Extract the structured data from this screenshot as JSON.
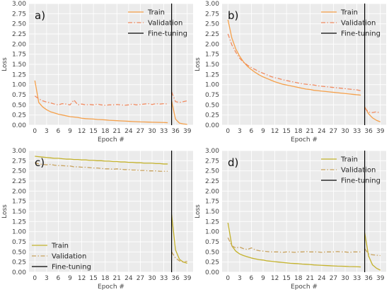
{
  "colors": {
    "panel_background": "#ebebeb",
    "grid": "#ffffff",
    "fine_tuning_line": "#000000",
    "train_orange": "#f5a04a",
    "validation_orange": "#f08a60",
    "train_olive": "#c4b22c",
    "validation_olive": "#c8a25e"
  },
  "chart_data": [
    {
      "type": "line",
      "panel_label": "a)",
      "xlabel": "Epoch #",
      "ylabel": "Loss",
      "xlim": [
        -1.5,
        40.5
      ],
      "ylim": [
        0,
        3
      ],
      "x_ticks": [
        "0",
        "3",
        "6",
        "9",
        "12",
        "15",
        "18",
        "21",
        "24",
        "27",
        "30",
        "33",
        "36",
        "39"
      ],
      "y_ticks": [
        "0.00",
        "0.25",
        "0.50",
        "0.75",
        "1.00",
        "1.25",
        "1.50",
        "1.75",
        "2.00",
        "2.25",
        "2.50",
        "2.75",
        "3.00"
      ],
      "grid": true,
      "legend": {
        "position": "top-right",
        "entries": [
          "Train",
          "Validation",
          "Fine-tuning"
        ]
      },
      "vline": {
        "x": 35,
        "label": "Fine-tuning"
      },
      "series": [
        {
          "name": "Train",
          "style": "solid",
          "color_key": "train_orange",
          "x": [
            0,
            1,
            2,
            3,
            4,
            5,
            6,
            7,
            8,
            9,
            10,
            11,
            12,
            13,
            14,
            15,
            16,
            17,
            18,
            19,
            20,
            21,
            22,
            23,
            24,
            25,
            26,
            27,
            28,
            29,
            30,
            31,
            32,
            33,
            34
          ],
          "y": [
            1.1,
            0.56,
            0.45,
            0.38,
            0.33,
            0.3,
            0.27,
            0.25,
            0.23,
            0.21,
            0.2,
            0.19,
            0.17,
            0.16,
            0.155,
            0.15,
            0.14,
            0.135,
            0.13,
            0.12,
            0.115,
            0.11,
            0.105,
            0.1,
            0.095,
            0.09,
            0.085,
            0.08,
            0.078,
            0.075,
            0.072,
            0.07,
            0.068,
            0.065,
            0.06
          ]
        },
        {
          "name": "Validation",
          "style": "dashdot",
          "color_key": "validation_orange",
          "x": [
            0,
            1,
            2,
            3,
            4,
            5,
            6,
            7,
            8,
            9,
            10,
            11,
            12,
            13,
            14,
            15,
            16,
            17,
            18,
            19,
            20,
            21,
            22,
            23,
            24,
            25,
            26,
            27,
            28,
            29,
            30,
            31,
            32,
            33,
            34
          ],
          "y": [
            0.72,
            0.65,
            0.6,
            0.57,
            0.55,
            0.52,
            0.5,
            0.53,
            0.52,
            0.5,
            0.62,
            0.5,
            0.52,
            0.5,
            0.51,
            0.5,
            0.52,
            0.5,
            0.49,
            0.5,
            0.5,
            0.51,
            0.5,
            0.49,
            0.5,
            0.52,
            0.5,
            0.51,
            0.52,
            0.53,
            0.51,
            0.53,
            0.52,
            0.53,
            0.52
          ]
        },
        {
          "name": "Train",
          "style": "solid",
          "color_key": "train_orange",
          "x": [
            35,
            36,
            37,
            38,
            39
          ],
          "y": [
            0.6,
            0.15,
            0.05,
            0.03,
            0.02
          ]
        },
        {
          "name": "Validation",
          "style": "dashdot",
          "color_key": "validation_orange",
          "x": [
            35,
            36,
            37,
            38,
            39
          ],
          "y": [
            0.82,
            0.58,
            0.56,
            0.58,
            0.6
          ]
        }
      ]
    },
    {
      "type": "line",
      "panel_label": "b)",
      "xlabel": "Epoch #",
      "ylabel": "Loss",
      "xlim": [
        -1.5,
        40.5
      ],
      "ylim": [
        0,
        3
      ],
      "x_ticks": [
        "0",
        "3",
        "6",
        "9",
        "12",
        "15",
        "18",
        "21",
        "24",
        "27",
        "30",
        "33",
        "36",
        "39"
      ],
      "y_ticks": [
        "0.00",
        "0.25",
        "0.50",
        "0.75",
        "1.00",
        "1.25",
        "1.50",
        "1.75",
        "2.00",
        "2.25",
        "2.50",
        "2.75",
        "3.00"
      ],
      "grid": true,
      "legend": {
        "position": "top-right",
        "entries": [
          "Train",
          "Validation",
          "Fine-tuning"
        ]
      },
      "vline": {
        "x": 35,
        "label": "Fine-tuning"
      },
      "series": [
        {
          "name": "Train",
          "style": "solid",
          "color_key": "train_orange",
          "x": [
            0,
            1,
            2,
            3,
            4,
            5,
            6,
            7,
            8,
            9,
            10,
            11,
            12,
            13,
            14,
            15,
            16,
            17,
            18,
            19,
            20,
            21,
            22,
            23,
            24,
            25,
            26,
            27,
            28,
            29,
            30,
            31,
            32,
            33,
            34
          ],
          "y": [
            2.6,
            2.15,
            1.88,
            1.7,
            1.56,
            1.45,
            1.37,
            1.3,
            1.24,
            1.19,
            1.15,
            1.11,
            1.07,
            1.04,
            1.01,
            0.99,
            0.97,
            0.95,
            0.93,
            0.91,
            0.89,
            0.88,
            0.86,
            0.85,
            0.84,
            0.83,
            0.82,
            0.81,
            0.8,
            0.79,
            0.78,
            0.77,
            0.76,
            0.75,
            0.74
          ]
        },
        {
          "name": "Validation",
          "style": "dashdot",
          "color_key": "validation_orange",
          "x": [
            0,
            1,
            2,
            3,
            4,
            5,
            6,
            7,
            8,
            9,
            10,
            11,
            12,
            13,
            14,
            15,
            16,
            17,
            18,
            19,
            20,
            21,
            22,
            23,
            24,
            25,
            26,
            27,
            28,
            29,
            30,
            31,
            32,
            33,
            34
          ],
          "y": [
            2.25,
            1.98,
            1.8,
            1.65,
            1.55,
            1.48,
            1.42,
            1.37,
            1.32,
            1.28,
            1.24,
            1.2,
            1.17,
            1.15,
            1.12,
            1.1,
            1.08,
            1.06,
            1.04,
            1.02,
            1.01,
            1.0,
            0.99,
            0.97,
            0.96,
            0.95,
            0.94,
            0.93,
            0.92,
            0.91,
            0.9,
            0.89,
            0.88,
            0.87,
            0.85
          ]
        },
        {
          "name": "Train",
          "style": "solid",
          "color_key": "train_orange",
          "x": [
            35,
            36,
            37,
            38,
            39
          ],
          "y": [
            0.45,
            0.28,
            0.18,
            0.12,
            0.08
          ]
        },
        {
          "name": "Validation",
          "style": "dashdot",
          "color_key": "validation_orange",
          "x": [
            35,
            36,
            37,
            38,
            39
          ],
          "y": [
            0.42,
            0.32,
            0.31,
            0.33,
            0.3
          ]
        }
      ]
    },
    {
      "type": "line",
      "panel_label": "c)",
      "xlabel": "Epoch #",
      "ylabel": "Loss",
      "xlim": [
        -1.5,
        40.5
      ],
      "ylim": [
        0,
        3
      ],
      "x_ticks": [
        "0",
        "3",
        "6",
        "9",
        "12",
        "15",
        "18",
        "21",
        "24",
        "27",
        "30",
        "33",
        "36",
        "39"
      ],
      "y_ticks": [
        "0.00",
        "0.25",
        "0.50",
        "0.75",
        "1.00",
        "1.25",
        "1.50",
        "1.75",
        "2.00",
        "2.25",
        "2.50",
        "2.75",
        "3.00"
      ],
      "grid": true,
      "legend": {
        "position": "bottom-left",
        "entries": [
          "Train",
          "Validation",
          "Fine-tuning"
        ]
      },
      "vline": {
        "x": 35,
        "label": "Fine-tuning"
      },
      "series": [
        {
          "name": "Train",
          "style": "solid",
          "color_key": "train_olive",
          "x": [
            0,
            1,
            2,
            3,
            4,
            5,
            6,
            7,
            8,
            9,
            10,
            11,
            12,
            13,
            14,
            15,
            16,
            17,
            18,
            19,
            20,
            21,
            22,
            23,
            24,
            25,
            26,
            27,
            28,
            29,
            30,
            31,
            32,
            33,
            34
          ],
          "y": [
            2.86,
            2.85,
            2.84,
            2.83,
            2.82,
            2.81,
            2.81,
            2.8,
            2.79,
            2.79,
            2.78,
            2.78,
            2.77,
            2.77,
            2.76,
            2.76,
            2.75,
            2.75,
            2.74,
            2.74,
            2.73,
            2.73,
            2.72,
            2.72,
            2.71,
            2.71,
            2.7,
            2.7,
            2.69,
            2.69,
            2.69,
            2.68,
            2.68,
            2.67,
            2.67
          ]
        },
        {
          "name": "Validation",
          "style": "dashdot",
          "color_key": "validation_olive",
          "x": [
            0,
            1,
            2,
            3,
            4,
            5,
            6,
            7,
            8,
            9,
            10,
            11,
            12,
            13,
            14,
            15,
            16,
            17,
            18,
            19,
            20,
            21,
            22,
            23,
            24,
            25,
            26,
            27,
            28,
            29,
            30,
            31,
            32,
            33,
            34
          ],
          "y": [
            2.7,
            2.67,
            2.66,
            2.65,
            2.66,
            2.64,
            2.63,
            2.63,
            2.62,
            2.62,
            2.6,
            2.6,
            2.59,
            2.59,
            2.58,
            2.57,
            2.57,
            2.56,
            2.55,
            2.55,
            2.54,
            2.55,
            2.54,
            2.53,
            2.53,
            2.52,
            2.52,
            2.51,
            2.51,
            2.5,
            2.5,
            2.5,
            2.49,
            2.49,
            2.49
          ]
        },
        {
          "name": "Train",
          "style": "solid",
          "color_key": "train_olive",
          "x": [
            35,
            36,
            37,
            38,
            39
          ],
          "y": [
            1.42,
            0.55,
            0.32,
            0.25,
            0.22
          ]
        },
        {
          "name": "Validation",
          "style": "dashdot",
          "color_key": "validation_olive",
          "x": [
            35,
            36,
            37,
            38,
            39
          ],
          "y": [
            0.5,
            0.35,
            0.28,
            0.25,
            0.27
          ]
        }
      ]
    },
    {
      "type": "line",
      "panel_label": "d)",
      "xlabel": "Epoch #",
      "ylabel": "Loss",
      "xlim": [
        -1.5,
        40.5
      ],
      "ylim": [
        0,
        3
      ],
      "x_ticks": [
        "0",
        "3",
        "6",
        "9",
        "12",
        "15",
        "18",
        "21",
        "24",
        "27",
        "30",
        "33",
        "36",
        "39"
      ],
      "y_ticks": [
        "0.00",
        "0.25",
        "0.50",
        "0.75",
        "1.00",
        "1.25",
        "1.50",
        "1.75",
        "2.00",
        "2.25",
        "2.50",
        "2.75",
        "3.00"
      ],
      "grid": true,
      "legend": {
        "position": "top-right",
        "entries": [
          "Train",
          "Validation",
          "Fine-tuning"
        ]
      },
      "vline": {
        "x": 35,
        "label": "Fine-tuning"
      },
      "series": [
        {
          "name": "Train",
          "style": "solid",
          "color_key": "train_olive",
          "x": [
            0,
            1,
            2,
            3,
            4,
            5,
            6,
            7,
            8,
            9,
            10,
            11,
            12,
            13,
            14,
            15,
            16,
            17,
            18,
            19,
            20,
            21,
            22,
            23,
            24,
            25,
            26,
            27,
            28,
            29,
            30,
            31,
            32,
            33,
            34
          ],
          "y": [
            1.22,
            0.65,
            0.52,
            0.45,
            0.41,
            0.38,
            0.35,
            0.33,
            0.31,
            0.3,
            0.28,
            0.27,
            0.26,
            0.25,
            0.24,
            0.23,
            0.22,
            0.215,
            0.21,
            0.2,
            0.195,
            0.19,
            0.18,
            0.175,
            0.17,
            0.165,
            0.16,
            0.155,
            0.15,
            0.148,
            0.145,
            0.14,
            0.138,
            0.135,
            0.13
          ]
        },
        {
          "name": "Validation",
          "style": "dashdot",
          "color_key": "validation_olive",
          "x": [
            0,
            1,
            2,
            3,
            4,
            5,
            6,
            7,
            8,
            9,
            10,
            11,
            12,
            13,
            14,
            15,
            16,
            17,
            18,
            19,
            20,
            21,
            22,
            23,
            24,
            25,
            26,
            27,
            28,
            29,
            30,
            31,
            32,
            33,
            34
          ],
          "y": [
            0.85,
            0.65,
            0.6,
            0.62,
            0.58,
            0.56,
            0.6,
            0.55,
            0.53,
            0.52,
            0.51,
            0.5,
            0.5,
            0.5,
            0.49,
            0.5,
            0.5,
            0.49,
            0.5,
            0.5,
            0.51,
            0.5,
            0.5,
            0.5,
            0.49,
            0.5,
            0.5,
            0.5,
            0.51,
            0.5,
            0.5,
            0.49,
            0.5,
            0.5,
            0.5
          ]
        },
        {
          "name": "Train",
          "style": "solid",
          "color_key": "train_olive",
          "x": [
            35,
            36,
            37,
            38,
            39
          ],
          "y": [
            0.97,
            0.4,
            0.18,
            0.1,
            0.05
          ]
        },
        {
          "name": "Validation",
          "style": "dashdot",
          "color_key": "validation_olive",
          "x": [
            35,
            36,
            37,
            38,
            39
          ],
          "y": [
            0.58,
            0.45,
            0.43,
            0.42,
            0.41
          ]
        }
      ]
    }
  ]
}
